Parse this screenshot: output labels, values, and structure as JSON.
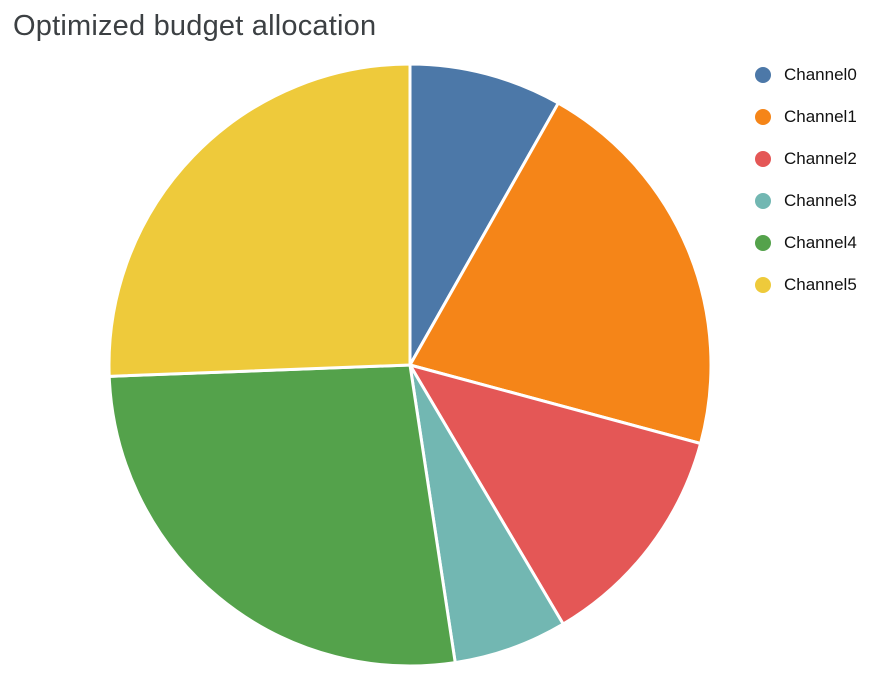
{
  "title": "Optimized budget allocation",
  "title_color": "#3c4043",
  "background_color": "#ffffff",
  "chart_data": {
    "type": "pie",
    "title": "Optimized budget allocation",
    "categories": [
      "Channel0",
      "Channel1",
      "Channel2",
      "Channel3",
      "Channel4",
      "Channel5"
    ],
    "values": [
      8.2,
      21.0,
      12.3,
      6.1,
      26.8,
      25.6
    ],
    "value_unit": "percent_of_total_budget",
    "colors": [
      "#4c78a8",
      "#f58518",
      "#e45756",
      "#72b7b2",
      "#54a24b",
      "#eeca3b"
    ],
    "start_angle_deg": 0,
    "direction": "clockwise",
    "slice_stroke_color": "#ffffff",
    "slice_stroke_width": 3,
    "legend_position": "right",
    "legend_marker": "circle",
    "grid": false
  }
}
